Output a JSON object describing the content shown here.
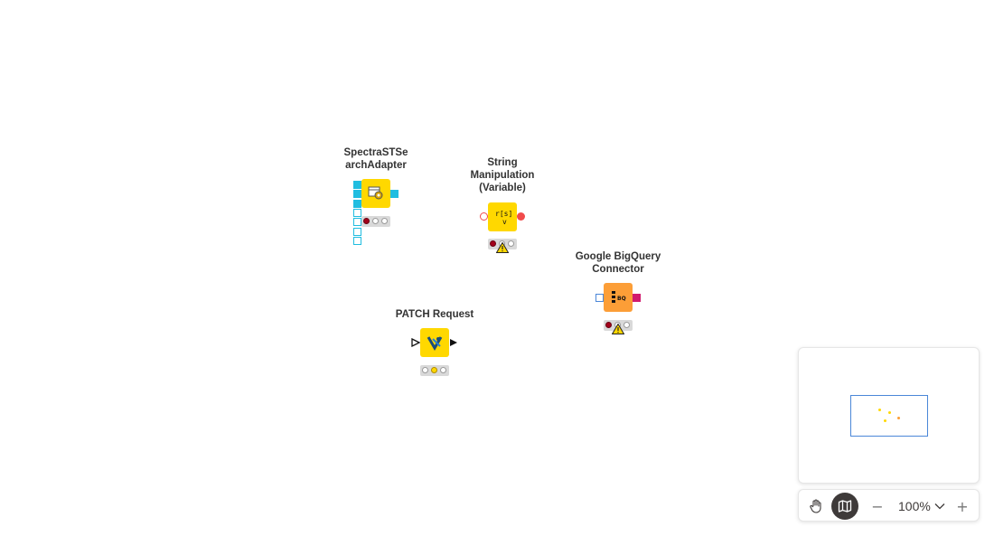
{
  "nodes": {
    "spectra": {
      "title": "SpectraSTSe\narchAdapter",
      "icon": "gear-table-icon",
      "status": "red"
    },
    "string_manip": {
      "title": "String\nManipulation\n(Variable)",
      "icon_text": "r[s]\n v",
      "icon": "string-manipulation-icon",
      "status": "red",
      "warning": true
    },
    "bigquery": {
      "title": "Google BigQuery\nConnector",
      "icon_text": "BQ",
      "icon": "bigquery-icon",
      "status": "red",
      "warning": true
    },
    "patch": {
      "title": "PATCH Request",
      "icon": "rest-patch-icon",
      "status": "yellow"
    }
  },
  "colors": {
    "node_yellow": "#ffd800",
    "node_orange": "#fc9e37",
    "port_blue": "#20bde0",
    "port_red": "#f14b4b",
    "port_pink": "#d11a6e",
    "minimap_frame": "#4b87d8"
  },
  "toolbar": {
    "pan_icon": "hand-icon",
    "minimap_icon": "map-icon",
    "zoom_out": "−",
    "zoom_level": "100%",
    "zoom_in": "+"
  }
}
